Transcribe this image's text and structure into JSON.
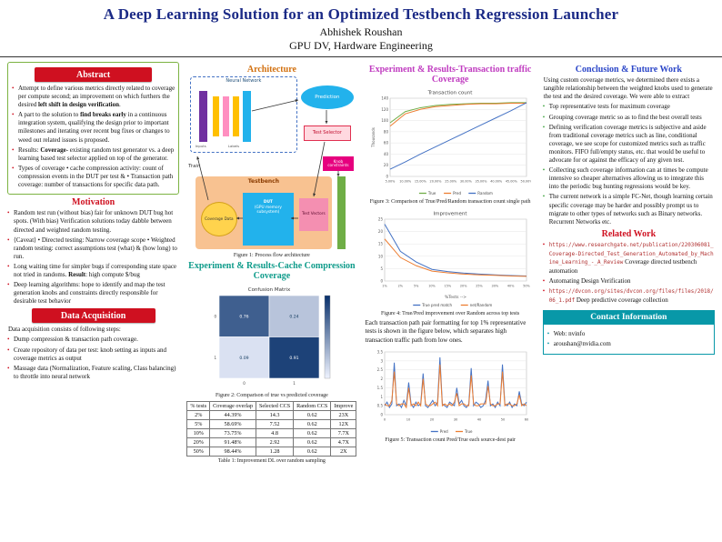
{
  "header": {
    "title": "A Deep Learning Solution for an Optimized Testbench Regression Launcher",
    "author": "Abhishek Roushan",
    "affiliation": "GPU DV, Hardware Engineering"
  },
  "abstract": {
    "heading": "Abstract",
    "bullets": [
      {
        "pre": "Attempt to define various metrics directly related to coverage per compute second; an improvement on which furthers the desired ",
        "bold": "left shift in design verification",
        "post": "."
      },
      {
        "pre": "A part to the solution to ",
        "bold": "find breaks early",
        "post": " in a continuous integration system, qualifying the design prior to important milestones and iterating over recent bug fixes or changes to weed out related issues is proposed."
      },
      {
        "pre": "Results: ",
        "bold": "Coverage",
        "post": "- existing random test generator vs. a deep learning based test selector applied on top of the generator."
      },
      {
        "pre": "Types of coverage • cache compression activity: count of compression events in the DUT per test & • Transaction path coverage: number of transactions for specific data path.",
        "bold": "",
        "post": ""
      }
    ]
  },
  "motivation": {
    "heading": "Motivation",
    "bullets": [
      {
        "pre": "Random test run (without bias) fair for unknown DUT bug hot spots. (With bias) Verification solutions today dabble between directed and weighted random testing.",
        "bold": "",
        "post": ""
      },
      {
        "pre": "⟨Caveat⟩ • Directed testing: Narrow coverage scope • Weighted random testing: correct assumptions test (what) & (how long) to run.",
        "bold": "",
        "post": ""
      },
      {
        "pre": "Long waiting time for simpler bugs if corresponding state space not tried in randoms. ",
        "bold": "Result",
        "post": ": high compute $/bug"
      },
      {
        "pre": "Deep learning algorithms: hope to identify and map the test generation knobs and constraints directly responsible for desirable test behavior",
        "bold": "",
        "post": ""
      }
    ]
  },
  "data_acquisition": {
    "heading": "Data Acquisition",
    "intro": "Data acquisition consists of following steps:",
    "bullets": [
      "Dump compression & transaction path coverage.",
      "Create repository of data per test: knob setting as inputs and coverage metrics as output",
      "Massage data (Normalization, Feature scaling, Class balancing) to throttle into neural network"
    ]
  },
  "architecture": {
    "heading": "Architecture",
    "caption": "Figure 1: Process flow architecture",
    "diagram": {
      "nn_label": "Neural Network",
      "inputs": "Inputs",
      "labels": "Labels",
      "prediction": "Prediction",
      "test_selector": "Test Selector",
      "train": "Train",
      "knob": "Knob constraints",
      "testbench": "Testbench",
      "coverage_data": "Coverage Data",
      "dut_title": "DUT",
      "dut_sub": "(GPU memory subsystem)",
      "test_vectors": "Test Vectors"
    }
  },
  "cache_results": {
    "heading": "Experiment & Results-Cache Compression Coverage",
    "fig_caption": "Figure 2: Comparison of true vs predicted coverage",
    "table": {
      "headers": [
        "% tests",
        "Coverage overlap",
        "Selected CCS",
        "Random CCS",
        "Improve"
      ],
      "rows": [
        [
          "2%",
          "44.39%",
          "14.3",
          "0.62",
          "23X"
        ],
        [
          "5%",
          "58.69%",
          "7.52",
          "0.62",
          "12X"
        ],
        [
          "10%",
          "73.75%",
          "4.8",
          "0.62",
          "7.7X"
        ],
        [
          "20%",
          "91.48%",
          "2.92",
          "0.62",
          "4.7X"
        ],
        [
          "50%",
          "98.44%",
          "1.28",
          "0.62",
          "2X"
        ]
      ],
      "caption": "Table 1: Improvement DL over random sampling"
    }
  },
  "transaction_results": {
    "heading": "Experiment & Results-Transaction traffic Coverage",
    "fig3_caption": "Figure 3: Comparison of True/Pred/Random transaction count single path",
    "fig4_caption": "Figure 4: True/Pred improvement over Random across top tests",
    "paragraph": "Each transaction path pair formatting for top 1% representative tests is shown in the figure below, which separates high transaction traffic path from low ones.",
    "fig5_caption": "Figure 5: Transaction count Pred/True each source-dest pair"
  },
  "conclusion": {
    "heading": "Conclusion & Future Work",
    "paragraph": "Using custom coverage metrics, we determined there exists a tangible relationship between the weighted knobs used to generate the test and the desired coverage. We were able to extract",
    "bullets": [
      "Top representative tests for maximum coverage",
      "Grouping coverage metric so as to find the best overall tests",
      "Defining verification coverage metrics is subjective and aside from traditional coverage metrics such as line, conditional coverage, we see scope for customized metrics such as traffic monitors. FIFO full/empty status, etc. that would be useful to advocate for or against the efficacy of any given test.",
      "Collecting such coverage information can at times be compute intensive so cheaper alternatives allowing us to integrate this into the periodic bug hunting regressions would be key.",
      "The current network is a simple FC-Net, though learning certain specific coverage may be harder and possibly prompt us to migrate to other types of networks such as Binary networks. Recurrent Networks etc."
    ]
  },
  "related_work": {
    "heading": "Related Work",
    "items": [
      {
        "url": "https://www.researchgate.net/publication/220306081_Coverage-Directed_Test_Generation_Automated_by_Machine_Learning_-_A_Review",
        "desc": " Coverage directed testbench automation"
      },
      {
        "text": "Automating Design Verification"
      },
      {
        "url": "https://dvcon.org/sites/dvcon.org/files/files/2018/06_1.pdf",
        "desc": " Deep predictive coverage collection"
      }
    ]
  },
  "contact": {
    "heading": "Contact Information",
    "items": [
      "Web: nvinfo",
      "aroushan@nvidia.com"
    ]
  },
  "colors": {
    "title_navy": "#1b2a86",
    "header_red": "#cf1020",
    "abstract_border_green": "#7cb342",
    "architecture_orange": "#d2700f",
    "cache_teal": "#0e9b8a",
    "transaction_magenta": "#c03cc0",
    "conclusion_blue": "#2b46c8",
    "contact_teal": "#0898a8",
    "link_red": "#b03030"
  },
  "chart_data": [
    {
      "id": "confusion",
      "type": "heatmap",
      "title": "Confusion Matrix",
      "matrix": [
        [
          0.76,
          0.24
        ],
        [
          0.09,
          0.91
        ]
      ],
      "xticklabels": [
        "0",
        "1"
      ],
      "yticklabels": [
        "0",
        "1"
      ]
    },
    {
      "id": "transaction",
      "type": "line",
      "title": "Transaction count",
      "ylabel": "Thousands",
      "x": [
        "5.00%",
        "10.00%",
        "15.00%",
        "20.00%",
        "25.00%",
        "30.00%",
        "35.00%",
        "40.00%",
        "45.00%",
        "50.00%"
      ],
      "ylim": [
        0,
        140
      ],
      "yticks": 7,
      "showX": true,
      "legend": true,
      "series": [
        {
          "name": "True",
          "color": "#70ad47",
          "values": [
            96,
            116,
            123,
            127,
            129,
            130,
            131,
            131,
            132,
            132
          ]
        },
        {
          "name": "Pred",
          "color": "#ed7d31",
          "values": [
            90,
            112,
            120,
            125,
            127,
            129,
            130,
            130,
            131,
            131
          ]
        },
        {
          "name": "Random",
          "color": "#4472c4",
          "values": [
            13,
            26,
            40,
            53,
            66,
            79,
            92,
            105,
            118,
            132
          ]
        }
      ]
    },
    {
      "id": "improvement",
      "type": "line",
      "title": "Improvement",
      "xlabel": "%Tests -->",
      "x": [
        "1%",
        "2%",
        "5%",
        "10%",
        "15%",
        "20%",
        "25%",
        "30%",
        "40%",
        "50%"
      ],
      "ylim": [
        0,
        25
      ],
      "yticks": 5,
      "showX": true,
      "legend": true,
      "series": [
        {
          "name": "True pred match",
          "color": "#4472c4",
          "values": [
            23,
            12,
            7.7,
            4.7,
            3.8,
            3.2,
            2.8,
            2.5,
            2.2,
            2.0
          ]
        },
        {
          "name": "net/Random",
          "color": "#ed7d31",
          "values": [
            17,
            9.5,
            6.2,
            4.0,
            3.3,
            2.8,
            2.5,
            2.3,
            2.0,
            1.9
          ]
        }
      ]
    },
    {
      "id": "path-pairs",
      "type": "line",
      "title": "",
      "xRange": [
        0,
        60
      ],
      "ylim": [
        0,
        3.5
      ],
      "yticks": 7,
      "showX": true,
      "legend": true,
      "series": [
        {
          "name": "Pred",
          "color": "#4472c4",
          "values": [
            0.5,
            0.7,
            0.4,
            0.6,
            2.9,
            0.5,
            0.6,
            0.4,
            0.8,
            0.5,
            1.8,
            0.6,
            0.4,
            0.7,
            0.5,
            0.6,
            2.3,
            0.5,
            0.4,
            0.6,
            0.8,
            0.5,
            0.7,
            3.2,
            0.6,
            0.5,
            0.4,
            0.7,
            0.6,
            0.5,
            1.5,
            0.6,
            0.8,
            0.5,
            0.4,
            0.6,
            2.6,
            0.5,
            0.7,
            0.6,
            0.4,
            0.5,
            0.8,
            1.9,
            0.5,
            0.6,
            0.4,
            0.7,
            0.5,
            2.8,
            0.6,
            0.5,
            0.7,
            0.4,
            0.6,
            0.5,
            1.3,
            0.6,
            0.5,
            0.7
          ]
        },
        {
          "name": "True",
          "color": "#ed7d31",
          "values": [
            0.6,
            0.5,
            0.5,
            0.8,
            2.4,
            0.6,
            0.5,
            0.6,
            0.6,
            0.4,
            1.5,
            0.5,
            0.6,
            0.5,
            0.7,
            0.5,
            2.0,
            0.6,
            0.5,
            0.5,
            0.6,
            0.7,
            0.5,
            2.8,
            0.5,
            0.6,
            0.5,
            0.6,
            0.5,
            0.7,
            1.2,
            0.5,
            0.6,
            0.6,
            0.5,
            0.5,
            2.2,
            0.6,
            0.5,
            0.5,
            0.6,
            0.6,
            0.6,
            1.6,
            0.6,
            0.5,
            0.5,
            0.6,
            0.6,
            2.4,
            0.5,
            0.6,
            0.6,
            0.5,
            0.5,
            0.6,
            1.1,
            0.5,
            0.6,
            0.5
          ]
        }
      ]
    }
  ]
}
